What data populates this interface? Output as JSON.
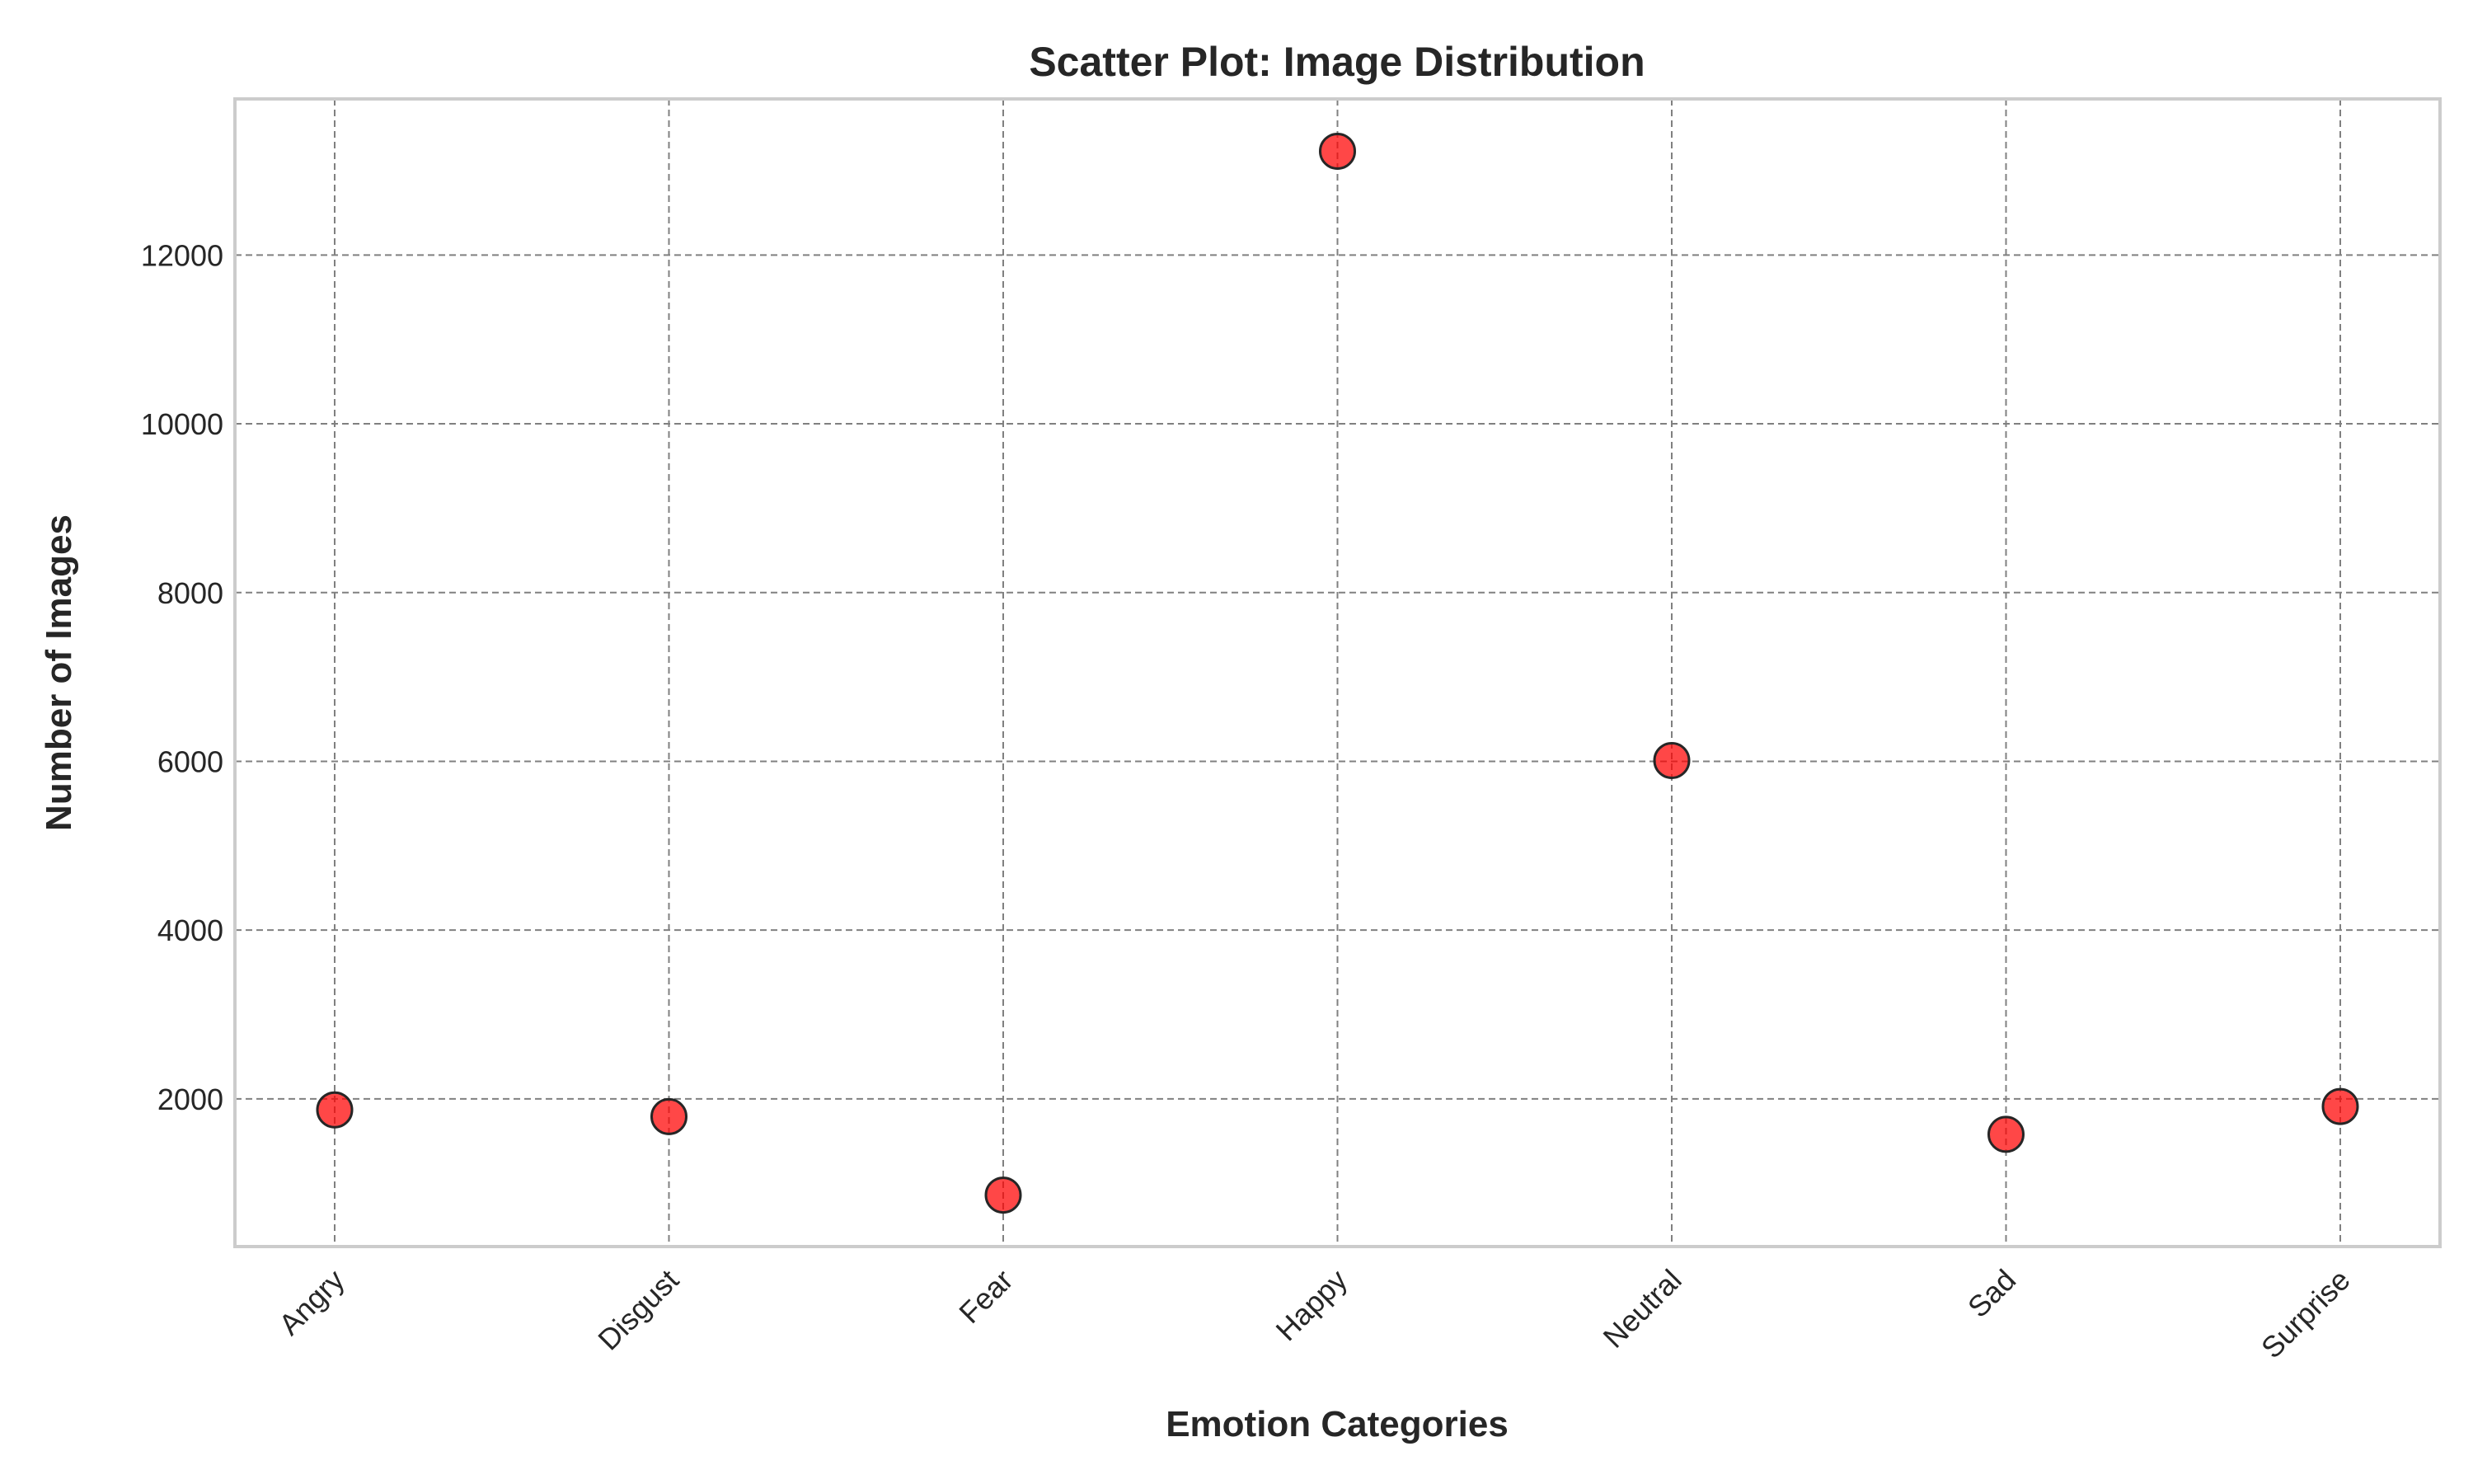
{
  "chart_data": {
    "type": "scatter",
    "title": "Scatter Plot: Image Distribution",
    "xlabel": "Emotion Categories",
    "ylabel": "Number of Images",
    "categories": [
      "Angry",
      "Disgust",
      "Fear",
      "Happy",
      "Neutral",
      "Sad",
      "Surprise"
    ],
    "values": [
      1870,
      1790,
      860,
      13230,
      6010,
      1580,
      1910
    ],
    "yticks": [
      2000,
      4000,
      6000,
      8000,
      10000,
      12000
    ],
    "ylim": [
      250,
      13850
    ],
    "grid": true,
    "marker_color": "#ff0000",
    "marker_edge_color": "#262626",
    "frame_color": "#cccccc",
    "grid_color": "#808080"
  }
}
